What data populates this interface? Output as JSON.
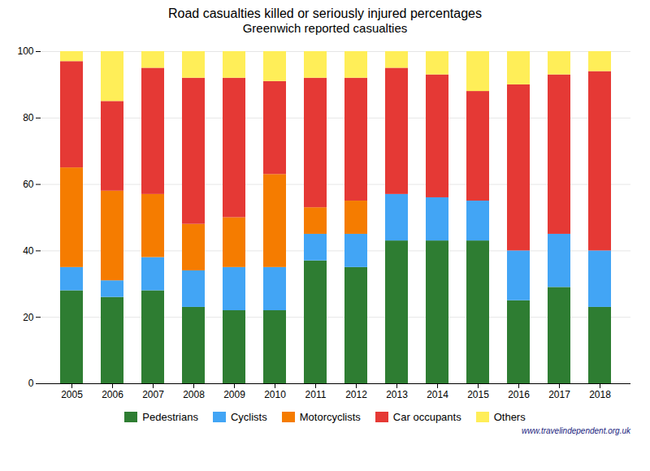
{
  "chart_data": {
    "type": "bar",
    "title": "Road casualties killed or seriously injured percentages",
    "subtitle": "Greenwich reported casualties",
    "annotations": [
      "www.travelindependent.org.uk"
    ],
    "categories": [
      "2005",
      "2006",
      "2007",
      "2008",
      "2009",
      "2010",
      "2011",
      "2012",
      "2013",
      "2014",
      "2015",
      "2016",
      "2017",
      "2018"
    ],
    "series": [
      {
        "name": "Pedestrians",
        "color": "#2e7d32",
        "values": [
          28,
          26,
          28,
          23,
          22,
          22,
          37,
          35,
          43,
          43,
          43,
          25,
          29,
          23
        ]
      },
      {
        "name": "Cyclists",
        "color": "#42a5f5",
        "values": [
          7,
          5,
          10,
          11,
          13,
          13,
          8,
          10,
          14,
          13,
          12,
          15,
          16,
          17
        ]
      },
      {
        "name": "Motorcyclists",
        "color": "#f57c00",
        "values": [
          30,
          27,
          19,
          14,
          15,
          28,
          8,
          10,
          0,
          0,
          0,
          0,
          0,
          0
        ]
      },
      {
        "name": "Car occupants",
        "color": "#e53935",
        "values": [
          32,
          27,
          38,
          44,
          42,
          28,
          39,
          37,
          38,
          37,
          33,
          50,
          48,
          54
        ]
      },
      {
        "name": "Others",
        "color": "#ffee58",
        "values": [
          3,
          15,
          5,
          8,
          8,
          9,
          8,
          8,
          5,
          7,
          12,
          10,
          7,
          6
        ]
      }
    ],
    "stacked": true,
    "ylim": [
      0,
      100
    ],
    "yticks": [
      0,
      20,
      40,
      60,
      80,
      100
    ],
    "grid": true,
    "legend": "bottom"
  }
}
